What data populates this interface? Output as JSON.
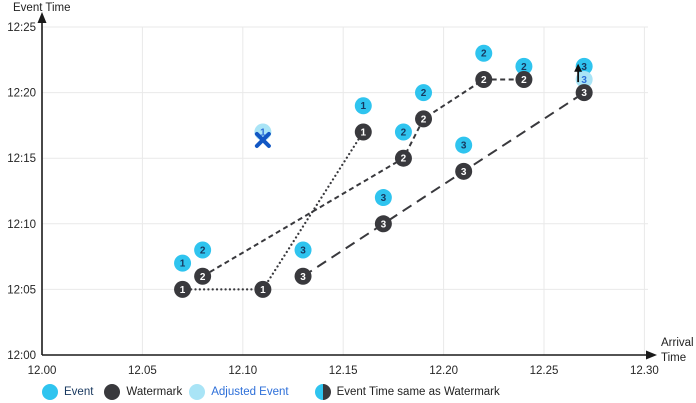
{
  "chart_data": {
    "type": "scatter",
    "title": "",
    "x_axis": {
      "label": "Arrival Time",
      "label_line1": "Arrival",
      "label_line2": "Time",
      "min": 12.0,
      "max": 12.3,
      "ticks": [
        {
          "value": 12.0,
          "label": "12.00"
        },
        {
          "value": 12.05,
          "label": "12.05"
        },
        {
          "value": 12.1,
          "label": "12.10"
        },
        {
          "value": 12.15,
          "label": "12.15"
        },
        {
          "value": 12.2,
          "label": "12.20"
        },
        {
          "value": 12.25,
          "label": "12.25"
        },
        {
          "value": 12.3,
          "label": "12.30"
        }
      ]
    },
    "y_axis": {
      "label": "Event Time",
      "min_label": "12:00",
      "max_label": "12:25",
      "ticks": [
        {
          "minutes": 0,
          "label": "12:00"
        },
        {
          "minutes": 5,
          "label": "12:05"
        },
        {
          "minutes": 10,
          "label": "12:10"
        },
        {
          "minutes": 15,
          "label": "12:15"
        },
        {
          "minutes": 20,
          "label": "12:20"
        },
        {
          "minutes": 25,
          "label": "12:25"
        }
      ]
    },
    "grid": true,
    "points": [
      {
        "series": 1,
        "kind": "event",
        "arrival": 12.07,
        "event_min": 7,
        "event_time": "12:07"
      },
      {
        "series": 1,
        "kind": "watermark",
        "arrival": 12.07,
        "event_min": 5,
        "event_time": "12:05"
      },
      {
        "series": 1,
        "kind": "watermark",
        "arrival": 12.11,
        "event_min": 5,
        "event_time": "12:05"
      },
      {
        "series": 1,
        "kind": "adjusted",
        "arrival": 12.11,
        "event_min": 17,
        "event_time": "12:17",
        "crossed": true
      },
      {
        "series": 1,
        "kind": "event",
        "arrival": 12.16,
        "event_min": 19,
        "event_time": "12:19"
      },
      {
        "series": 1,
        "kind": "watermark",
        "arrival": 12.16,
        "event_min": 17,
        "event_time": "12:17"
      },
      {
        "series": 2,
        "kind": "event",
        "arrival": 12.08,
        "event_min": 8,
        "event_time": "12:08"
      },
      {
        "series": 2,
        "kind": "watermark",
        "arrival": 12.08,
        "event_min": 6,
        "event_time": "12:06"
      },
      {
        "series": 2,
        "kind": "event",
        "arrival": 12.18,
        "event_min": 17,
        "event_time": "12:17"
      },
      {
        "series": 2,
        "kind": "watermark",
        "arrival": 12.18,
        "event_min": 15,
        "event_time": "12:15"
      },
      {
        "series": 2,
        "kind": "event",
        "arrival": 12.19,
        "event_min": 20,
        "event_time": "12:20"
      },
      {
        "series": 2,
        "kind": "watermark",
        "arrival": 12.19,
        "event_min": 18,
        "event_time": "12:18"
      },
      {
        "series": 2,
        "kind": "event",
        "arrival": 12.22,
        "event_min": 23,
        "event_time": "12:23"
      },
      {
        "series": 2,
        "kind": "watermark",
        "arrival": 12.22,
        "event_min": 21,
        "event_time": "12:21"
      },
      {
        "series": 2,
        "kind": "event",
        "arrival": 12.24,
        "event_min": 22,
        "event_time": "12:22"
      },
      {
        "series": 2,
        "kind": "watermark",
        "arrival": 12.24,
        "event_min": 21,
        "event_time": "12:21"
      },
      {
        "series": 3,
        "kind": "event",
        "arrival": 12.13,
        "event_min": 8,
        "event_time": "12:08"
      },
      {
        "series": 3,
        "kind": "watermark",
        "arrival": 12.13,
        "event_min": 6,
        "event_time": "12:06"
      },
      {
        "series": 3,
        "kind": "event",
        "arrival": 12.17,
        "event_min": 12,
        "event_time": "12:12"
      },
      {
        "series": 3,
        "kind": "watermark",
        "arrival": 12.17,
        "event_min": 10,
        "event_time": "12:10"
      },
      {
        "series": 3,
        "kind": "event",
        "arrival": 12.21,
        "event_min": 16,
        "event_time": "12:16"
      },
      {
        "series": 3,
        "kind": "watermark",
        "arrival": 12.21,
        "event_min": 14,
        "event_time": "12:14"
      },
      {
        "series": 3,
        "kind": "event",
        "arrival": 12.27,
        "event_min": 22,
        "event_time": "12:22"
      },
      {
        "series": 3,
        "kind": "adjusted",
        "arrival": 12.27,
        "event_min": 21,
        "event_time": "12:21"
      },
      {
        "series": 3,
        "kind": "watermark",
        "arrival": 12.27,
        "event_min": 20,
        "event_time": "12:20"
      }
    ],
    "watermark_lines": [
      {
        "series": 1,
        "style": "dotted",
        "points": [
          [
            12.07,
            5
          ],
          [
            12.11,
            5
          ],
          [
            12.16,
            17
          ]
        ]
      },
      {
        "series": 2,
        "style": "dashed",
        "points": [
          [
            12.08,
            6
          ],
          [
            12.18,
            15
          ],
          [
            12.19,
            18
          ],
          [
            12.22,
            21
          ],
          [
            12.24,
            21
          ]
        ]
      },
      {
        "series": 3,
        "style": "longdash",
        "points": [
          [
            12.13,
            6
          ],
          [
            12.17,
            10
          ],
          [
            12.21,
            14
          ],
          [
            12.27,
            20
          ]
        ]
      }
    ],
    "up_arrow": {
      "arrival": 12.267,
      "from_min": 20.8,
      "to_min": 22.2
    }
  },
  "legend": {
    "items": [
      {
        "label": "Event",
        "swatch": "event",
        "text_color": "#17375E"
      },
      {
        "label": "Watermark",
        "swatch": "watermark",
        "text_color": "#222222"
      },
      {
        "label": "Adjusted Event",
        "swatch": "adjusted",
        "text_color": "#2D6FD9"
      },
      {
        "label": "Event Time same as Watermark",
        "swatch": "half",
        "text_color": "#222222"
      }
    ]
  },
  "colors": {
    "event": "#2FC4EF",
    "watermark": "#39393D",
    "adjusted": "#A9E4F6",
    "grid": "#E9E9E9",
    "axis": "#1A1A1A",
    "line": "#39393D",
    "x_mark": "#1257C4",
    "tick_label": "#262626",
    "number_on_event": "#17375E",
    "number_on_watermark": "#FFFFFF",
    "number_on_adjusted": "#2D6FD9"
  }
}
